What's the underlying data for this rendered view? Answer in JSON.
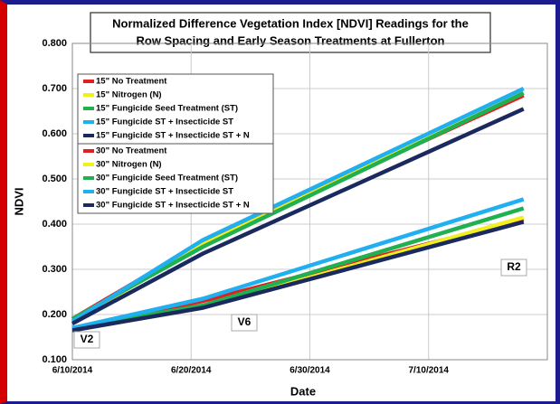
{
  "chart_data": {
    "type": "line",
    "title": [
      "Normalized Difference Vegetation Index [NDVI] Readings for the",
      "Row Spacing and Early Season Treatments at Fullerton"
    ],
    "x_label": "Date",
    "y_label": "NDVI",
    "x": [
      "2014-06-10",
      "2014-06-21",
      "2014-07-18"
    ],
    "xlim": [
      "2014-06-10",
      "2014-07-20"
    ],
    "xticks": [
      {
        "value": "2014-06-10",
        "label": "6/10/2014"
      },
      {
        "value": "2014-06-20",
        "label": "6/20/2014"
      },
      {
        "value": "2014-06-30",
        "label": "6/30/2014"
      },
      {
        "value": "2014-07-10",
        "label": "7/10/2014"
      }
    ],
    "ylim": [
      0.1,
      0.8
    ],
    "yticks": [
      {
        "value": 0.1,
        "label": "0.100"
      },
      {
        "value": 0.2,
        "label": "0.200"
      },
      {
        "value": 0.3,
        "label": "0.300"
      },
      {
        "value": 0.4,
        "label": "0.400"
      },
      {
        "value": 0.5,
        "label": "0.500"
      },
      {
        "value": 0.6,
        "label": "0.600"
      },
      {
        "value": 0.7,
        "label": "0.700"
      },
      {
        "value": 0.8,
        "label": "0.800"
      }
    ],
    "grid": true,
    "series": [
      {
        "name": "15\" No Treatment",
        "color": "#e02020",
        "values": [
          0.19,
          0.36,
          0.685
        ]
      },
      {
        "name": "15\" Nitrogen (N)",
        "color": "#f0f020",
        "values": [
          0.185,
          0.355,
          0.69
        ]
      },
      {
        "name": "15\" Fungicide Seed Treatment (ST)",
        "color": "#20b050",
        "values": [
          0.19,
          0.35,
          0.69
        ]
      },
      {
        "name": "15\" Fungicide ST + Insecticide ST",
        "color": "#20b0f0",
        "values": [
          0.185,
          0.365,
          0.7
        ]
      },
      {
        "name": "15\" Fungicide ST + Insecticide ST + N",
        "color": "#1a2a5e",
        "values": [
          0.18,
          0.335,
          0.655
        ]
      },
      {
        "name": "30\" No Treatment",
        "color": "#e02020",
        "values": [
          0.17,
          0.23,
          0.41
        ]
      },
      {
        "name": "30\" Nitrogen (N)",
        "color": "#f0f020",
        "values": [
          0.165,
          0.215,
          0.415
        ]
      },
      {
        "name": "30\" Fungicide Seed Treatment (ST)",
        "color": "#20b050",
        "values": [
          0.17,
          0.22,
          0.435
        ]
      },
      {
        "name": "30\" Fungicide ST + Insecticide ST",
        "color": "#20b0f0",
        "values": [
          0.17,
          0.235,
          0.455
        ]
      },
      {
        "name": "30\" Fungicide ST + Insecticide ST + N",
        "color": "#1a2a5e",
        "values": [
          0.165,
          0.215,
          0.405
        ]
      }
    ],
    "annotations": [
      "V2",
      "V6",
      "R2"
    ]
  }
}
